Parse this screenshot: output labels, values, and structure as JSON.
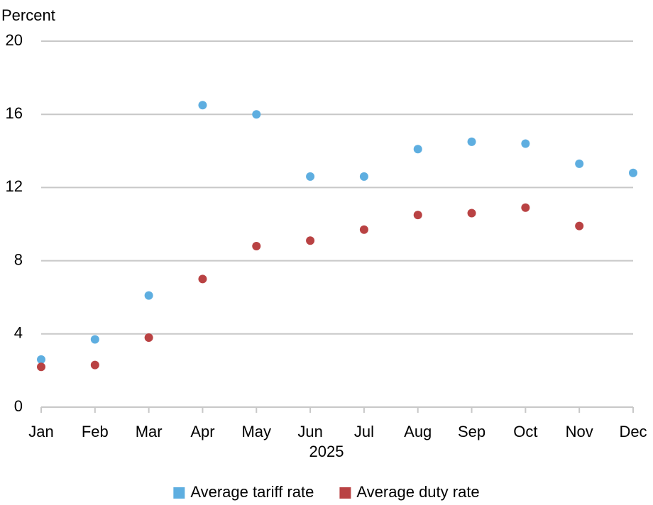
{
  "chart_data": {
    "type": "scatter",
    "y_label": "Percent",
    "x_label": "2025",
    "categories": [
      "Jan",
      "Feb",
      "Mar",
      "Apr",
      "May",
      "Jun",
      "Jul",
      "Aug",
      "Sep",
      "Oct",
      "Nov",
      "Dec"
    ],
    "series": [
      {
        "name": "Average tariff rate",
        "color": "#5eaee0",
        "values": [
          2.6,
          3.7,
          6.1,
          16.5,
          16.0,
          12.6,
          12.6,
          14.1,
          14.5,
          14.4,
          13.3,
          12.8
        ]
      },
      {
        "name": "Average duty rate",
        "color": "#b94243",
        "values": [
          2.2,
          2.3,
          3.8,
          7.0,
          8.8,
          9.1,
          9.7,
          10.5,
          10.6,
          10.9,
          9.9,
          null
        ]
      }
    ],
    "ylim": [
      0,
      20
    ],
    "yticks": [
      0,
      4,
      8,
      12,
      16,
      20
    ],
    "grid": true,
    "legend": "bottom"
  }
}
